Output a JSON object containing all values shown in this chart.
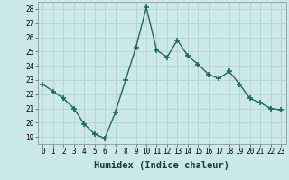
{
  "x": [
    0,
    1,
    2,
    3,
    4,
    5,
    6,
    7,
    8,
    9,
    10,
    11,
    12,
    13,
    14,
    15,
    16,
    17,
    18,
    19,
    20,
    21,
    22,
    23
  ],
  "y": [
    22.7,
    22.2,
    21.7,
    21.0,
    19.9,
    19.2,
    18.9,
    20.7,
    23.0,
    25.3,
    28.1,
    25.1,
    24.6,
    25.8,
    24.7,
    24.1,
    23.4,
    23.1,
    23.6,
    22.7,
    21.7,
    21.4,
    21.0,
    20.9
  ],
  "line_color": "#1a6b5a",
  "marker": "+",
  "markersize": 4,
  "markeredgewidth": 1.2,
  "linewidth": 1.0,
  "xlabel": "Humidex (Indice chaleur)",
  "xlim": [
    -0.5,
    23.5
  ],
  "ylim": [
    18.5,
    28.5
  ],
  "yticks": [
    19,
    20,
    21,
    22,
    23,
    24,
    25,
    26,
    27,
    28
  ],
  "xticks": [
    0,
    1,
    2,
    3,
    4,
    5,
    6,
    7,
    8,
    9,
    10,
    11,
    12,
    13,
    14,
    15,
    16,
    17,
    18,
    19,
    20,
    21,
    22,
    23
  ],
  "background_color": "#cce8e8",
  "grid_color": "#b0cccc",
  "tick_fontsize": 5.5,
  "xlabel_fontsize": 7.5
}
